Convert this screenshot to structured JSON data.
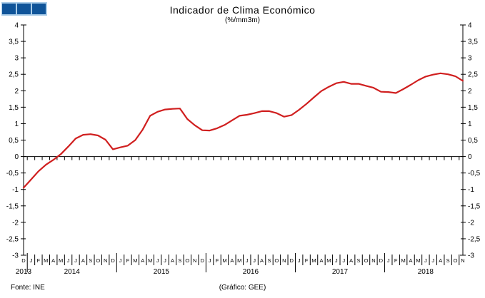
{
  "logo": {
    "square_color": "#0f5499",
    "background_color": "#a9cce8",
    "square_count": 3
  },
  "header": {
    "title": "Indicador de Clima Económico",
    "subtitle": "(%/mm3m)"
  },
  "footer": {
    "source": "Fonte: INE",
    "credit": "(Gráfico: GEE)"
  },
  "chart_data": {
    "type": "line",
    "title": "Indicador de Clima Económico",
    "subtitle": "(%/mm3m)",
    "ylim": [
      -3,
      4
    ],
    "ytick_step": 0.5,
    "ytick_labels": [
      "4",
      "3,5",
      "3",
      "2,5",
      "2",
      "1,5",
      "1",
      "0,5",
      "0",
      "-0,5",
      "-1",
      "-1,5",
      "-2",
      "-2,5",
      "-3"
    ],
    "grid": false,
    "legend": "none",
    "line_color": "#d01f1f",
    "axis_color": "#000000",
    "x_months": [
      "D",
      "J",
      "F",
      "M",
      "A",
      "M",
      "J",
      "J",
      "A",
      "S",
      "O",
      "N",
      "D",
      "J",
      "F",
      "M",
      "A",
      "M",
      "J",
      "J",
      "A",
      "S",
      "O",
      "N",
      "D",
      "J",
      "F",
      "M",
      "A",
      "M",
      "J",
      "J",
      "A",
      "S",
      "O",
      "N",
      "D",
      "J",
      "F",
      "M",
      "A",
      "M",
      "J",
      "J",
      "A",
      "S",
      "O",
      "N",
      "D",
      "J",
      "F",
      "M",
      "A",
      "M",
      "J",
      "J",
      "A",
      "S",
      "O",
      "N"
    ],
    "years": [
      {
        "label": "2013",
        "center_index": 0
      },
      {
        "label": "2014",
        "center_index": 6.5
      },
      {
        "label": "2015",
        "center_index": 18.5
      },
      {
        "label": "2016",
        "center_index": 30.5
      },
      {
        "label": "2017",
        "center_index": 42.5
      },
      {
        "label": "2018",
        "center_index": 54
      }
    ],
    "series": [
      {
        "name": "Indicador de Clima Económico",
        "values": [
          -0.95,
          -0.7,
          -0.45,
          -0.25,
          -0.1,
          0.07,
          0.3,
          0.55,
          0.66,
          0.68,
          0.64,
          0.51,
          0.22,
          0.28,
          0.33,
          0.5,
          0.82,
          1.24,
          1.36,
          1.43,
          1.45,
          1.46,
          1.14,
          0.95,
          0.8,
          0.79,
          0.86,
          0.96,
          1.1,
          1.24,
          1.27,
          1.32,
          1.38,
          1.38,
          1.32,
          1.21,
          1.26,
          1.42,
          1.6,
          1.8,
          1.99,
          2.12,
          2.23,
          2.27,
          2.21,
          2.21,
          2.15,
          2.09,
          1.97,
          1.96,
          1.93,
          2.05,
          2.18,
          2.32,
          2.43,
          2.49,
          2.53,
          2.5,
          2.44,
          2.3
        ]
      }
    ]
  }
}
